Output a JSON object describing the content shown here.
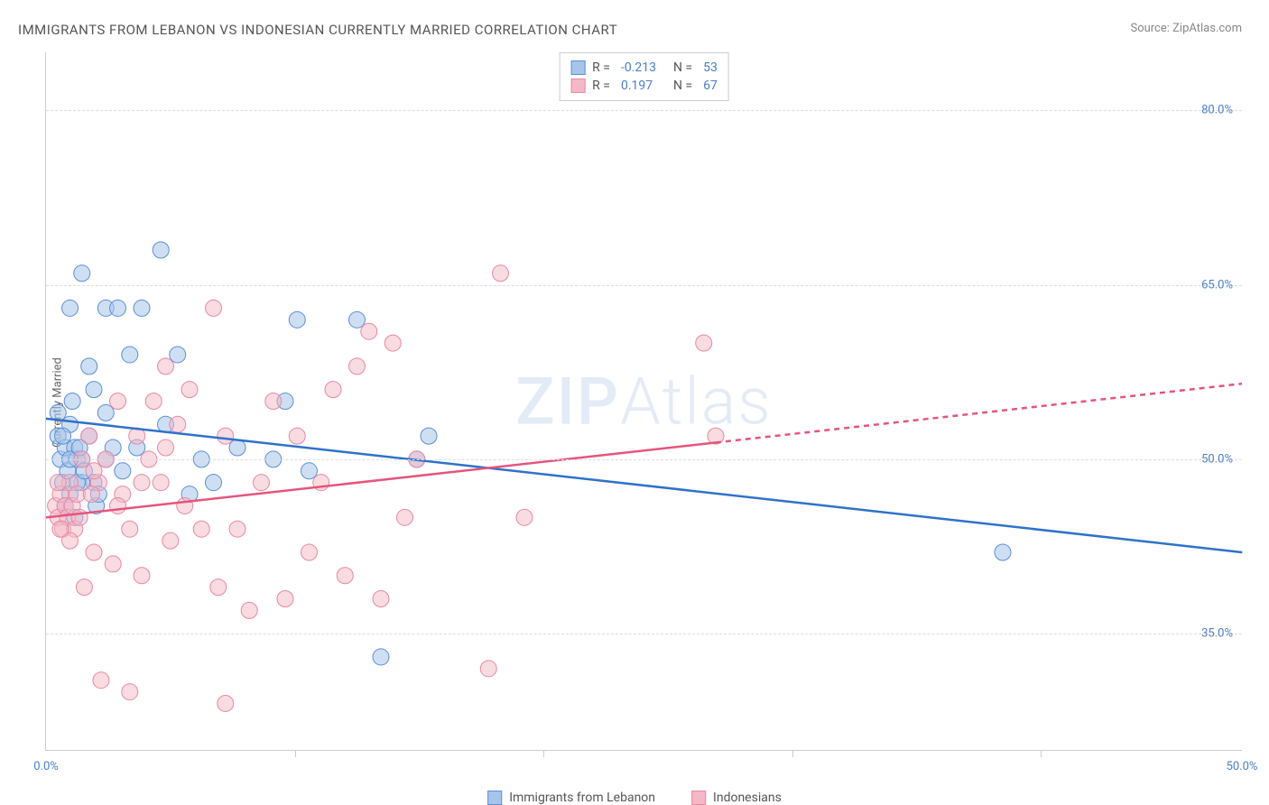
{
  "title": "IMMIGRANTS FROM LEBANON VS INDONESIAN CURRENTLY MARRIED CORRELATION CHART",
  "source": "Source: ZipAtlas.com",
  "ylabel": "Currently Married",
  "watermark_bold": "ZIP",
  "watermark_light": "Atlas",
  "chart": {
    "type": "scatter",
    "xlim": [
      0,
      50
    ],
    "ylim": [
      25,
      85
    ],
    "ytick_values": [
      35,
      50,
      65,
      80
    ],
    "ytick_labels": [
      "35.0%",
      "50.0%",
      "65.0%",
      "80.0%"
    ],
    "xtick_values": [
      0,
      50
    ],
    "xtick_labels": [
      "0.0%",
      "50.0%"
    ],
    "xtick_minor": [
      10.4,
      20.8,
      31.2,
      41.6
    ],
    "background_color": "#ffffff",
    "grid_color": "#dddddd",
    "axis_color": "#cccccc",
    "series": [
      {
        "name": "Immigrants from Lebanon",
        "fill_color": "#a7c5ea",
        "stroke_color": "#5b8fd6",
        "fill_opacity": 0.55,
        "marker_radius": 9,
        "trend_color": "#2f72c9",
        "trend_width": 2.5,
        "trend_dash_after_x": 50,
        "trend_y_start": 53.5,
        "trend_y_end": 42.0,
        "R": "-0.213",
        "N": "53",
        "points": [
          [
            0.5,
            52
          ],
          [
            0.6,
            50
          ],
          [
            0.7,
            48
          ],
          [
            0.8,
            51
          ],
          [
            0.9,
            49
          ],
          [
            1.0,
            53
          ],
          [
            1.2,
            51
          ],
          [
            1.0,
            47
          ],
          [
            1.3,
            50
          ],
          [
            1.1,
            55
          ],
          [
            1.5,
            66
          ],
          [
            2.0,
            48
          ],
          [
            1.0,
            63
          ],
          [
            1.8,
            58
          ],
          [
            1.5,
            48
          ],
          [
            2.5,
            63
          ],
          [
            2.1,
            46
          ],
          [
            2.0,
            56
          ],
          [
            3.0,
            63
          ],
          [
            2.5,
            54
          ],
          [
            3.2,
            49
          ],
          [
            3.5,
            59
          ],
          [
            3.8,
            51
          ],
          [
            4.0,
            63
          ],
          [
            4.8,
            68
          ],
          [
            5.0,
            53
          ],
          [
            5.5,
            59
          ],
          [
            6.0,
            47
          ],
          [
            6.5,
            50
          ],
          [
            2.8,
            51
          ],
          [
            7.0,
            48
          ],
          [
            8.0,
            51
          ],
          [
            9.5,
            50
          ],
          [
            10.0,
            55
          ],
          [
            10.5,
            62
          ],
          [
            13.0,
            62
          ],
          [
            11.0,
            49
          ],
          [
            15.5,
            50
          ],
          [
            16.0,
            52
          ],
          [
            14.0,
            33
          ],
          [
            40.0,
            42
          ],
          [
            1.2,
            45
          ],
          [
            1.5,
            50
          ],
          [
            0.8,
            46
          ],
          [
            2.2,
            47
          ],
          [
            1.8,
            52
          ],
          [
            2.5,
            50
          ],
          [
            0.5,
            54
          ],
          [
            0.7,
            52
          ],
          [
            1.0,
            50
          ],
          [
            1.3,
            48
          ],
          [
            1.6,
            49
          ],
          [
            1.4,
            51
          ]
        ]
      },
      {
        "name": "Indonesians",
        "fill_color": "#f4b8c6",
        "stroke_color": "#e888a3",
        "fill_opacity": 0.5,
        "marker_radius": 9,
        "trend_color": "#e5557c",
        "trend_width": 2.5,
        "trend_dash_after_x": 28,
        "trend_y_start": 45.0,
        "trend_y_end": 56.5,
        "R": "0.197",
        "N": "67",
        "points": [
          [
            0.4,
            46
          ],
          [
            0.5,
            45
          ],
          [
            0.6,
            47
          ],
          [
            0.7,
            44
          ],
          [
            0.8,
            46
          ],
          [
            0.9,
            45
          ],
          [
            1.0,
            48
          ],
          [
            1.1,
            46
          ],
          [
            1.2,
            44
          ],
          [
            1.3,
            47
          ],
          [
            1.4,
            45
          ],
          [
            1.5,
            50
          ],
          [
            1.8,
            52
          ],
          [
            2.0,
            42
          ],
          [
            2.2,
            48
          ],
          [
            2.5,
            50
          ],
          [
            2.8,
            41
          ],
          [
            3.0,
            55
          ],
          [
            3.2,
            47
          ],
          [
            3.5,
            44
          ],
          [
            3.8,
            52
          ],
          [
            4.0,
            40
          ],
          [
            4.3,
            50
          ],
          [
            4.5,
            55
          ],
          [
            4.8,
            48
          ],
          [
            5.0,
            58
          ],
          [
            5.2,
            43
          ],
          [
            5.5,
            53
          ],
          [
            5.8,
            46
          ],
          [
            6.0,
            56
          ],
          [
            6.5,
            44
          ],
          [
            7.0,
            63
          ],
          [
            7.2,
            39
          ],
          [
            7.5,
            52
          ],
          [
            8.0,
            44
          ],
          [
            8.5,
            37
          ],
          [
            9.0,
            48
          ],
          [
            9.5,
            55
          ],
          [
            10.0,
            38
          ],
          [
            10.5,
            52
          ],
          [
            11.0,
            42
          ],
          [
            11.5,
            48
          ],
          [
            12.0,
            56
          ],
          [
            12.5,
            40
          ],
          [
            13.0,
            58
          ],
          [
            13.5,
            61
          ],
          [
            14.0,
            38
          ],
          [
            14.5,
            60
          ],
          [
            15.0,
            45
          ],
          [
            15.5,
            50
          ],
          [
            2.0,
            49
          ],
          [
            3.0,
            46
          ],
          [
            4.0,
            48
          ],
          [
            5.0,
            51
          ],
          [
            3.5,
            30
          ],
          [
            7.5,
            29
          ],
          [
            18.5,
            32
          ],
          [
            19.0,
            66
          ],
          [
            20.0,
            45
          ],
          [
            27.5,
            60
          ],
          [
            28.0,
            52
          ],
          [
            1.6,
            39
          ],
          [
            2.3,
            31
          ],
          [
            1.9,
            47
          ],
          [
            1.0,
            43
          ],
          [
            0.5,
            48
          ],
          [
            0.6,
            44
          ]
        ]
      }
    ]
  },
  "legend": {
    "rows": [
      {
        "swatch_fill": "#a7c5ea",
        "swatch_stroke": "#5b8fd6",
        "R_label": "R =",
        "R_val": "-0.213",
        "N_label": "N =",
        "N_val": "53"
      },
      {
        "swatch_fill": "#f4b8c6",
        "swatch_stroke": "#e888a3",
        "R_label": "R =",
        "R_val": "0.197",
        "N_label": "N =",
        "N_val": "67"
      }
    ]
  },
  "bottom_legend": [
    {
      "swatch_fill": "#a7c5ea",
      "swatch_stroke": "#5b8fd6",
      "label": "Immigrants from Lebanon"
    },
    {
      "swatch_fill": "#f4b8c6",
      "swatch_stroke": "#e888a3",
      "label": "Indonesians"
    }
  ]
}
